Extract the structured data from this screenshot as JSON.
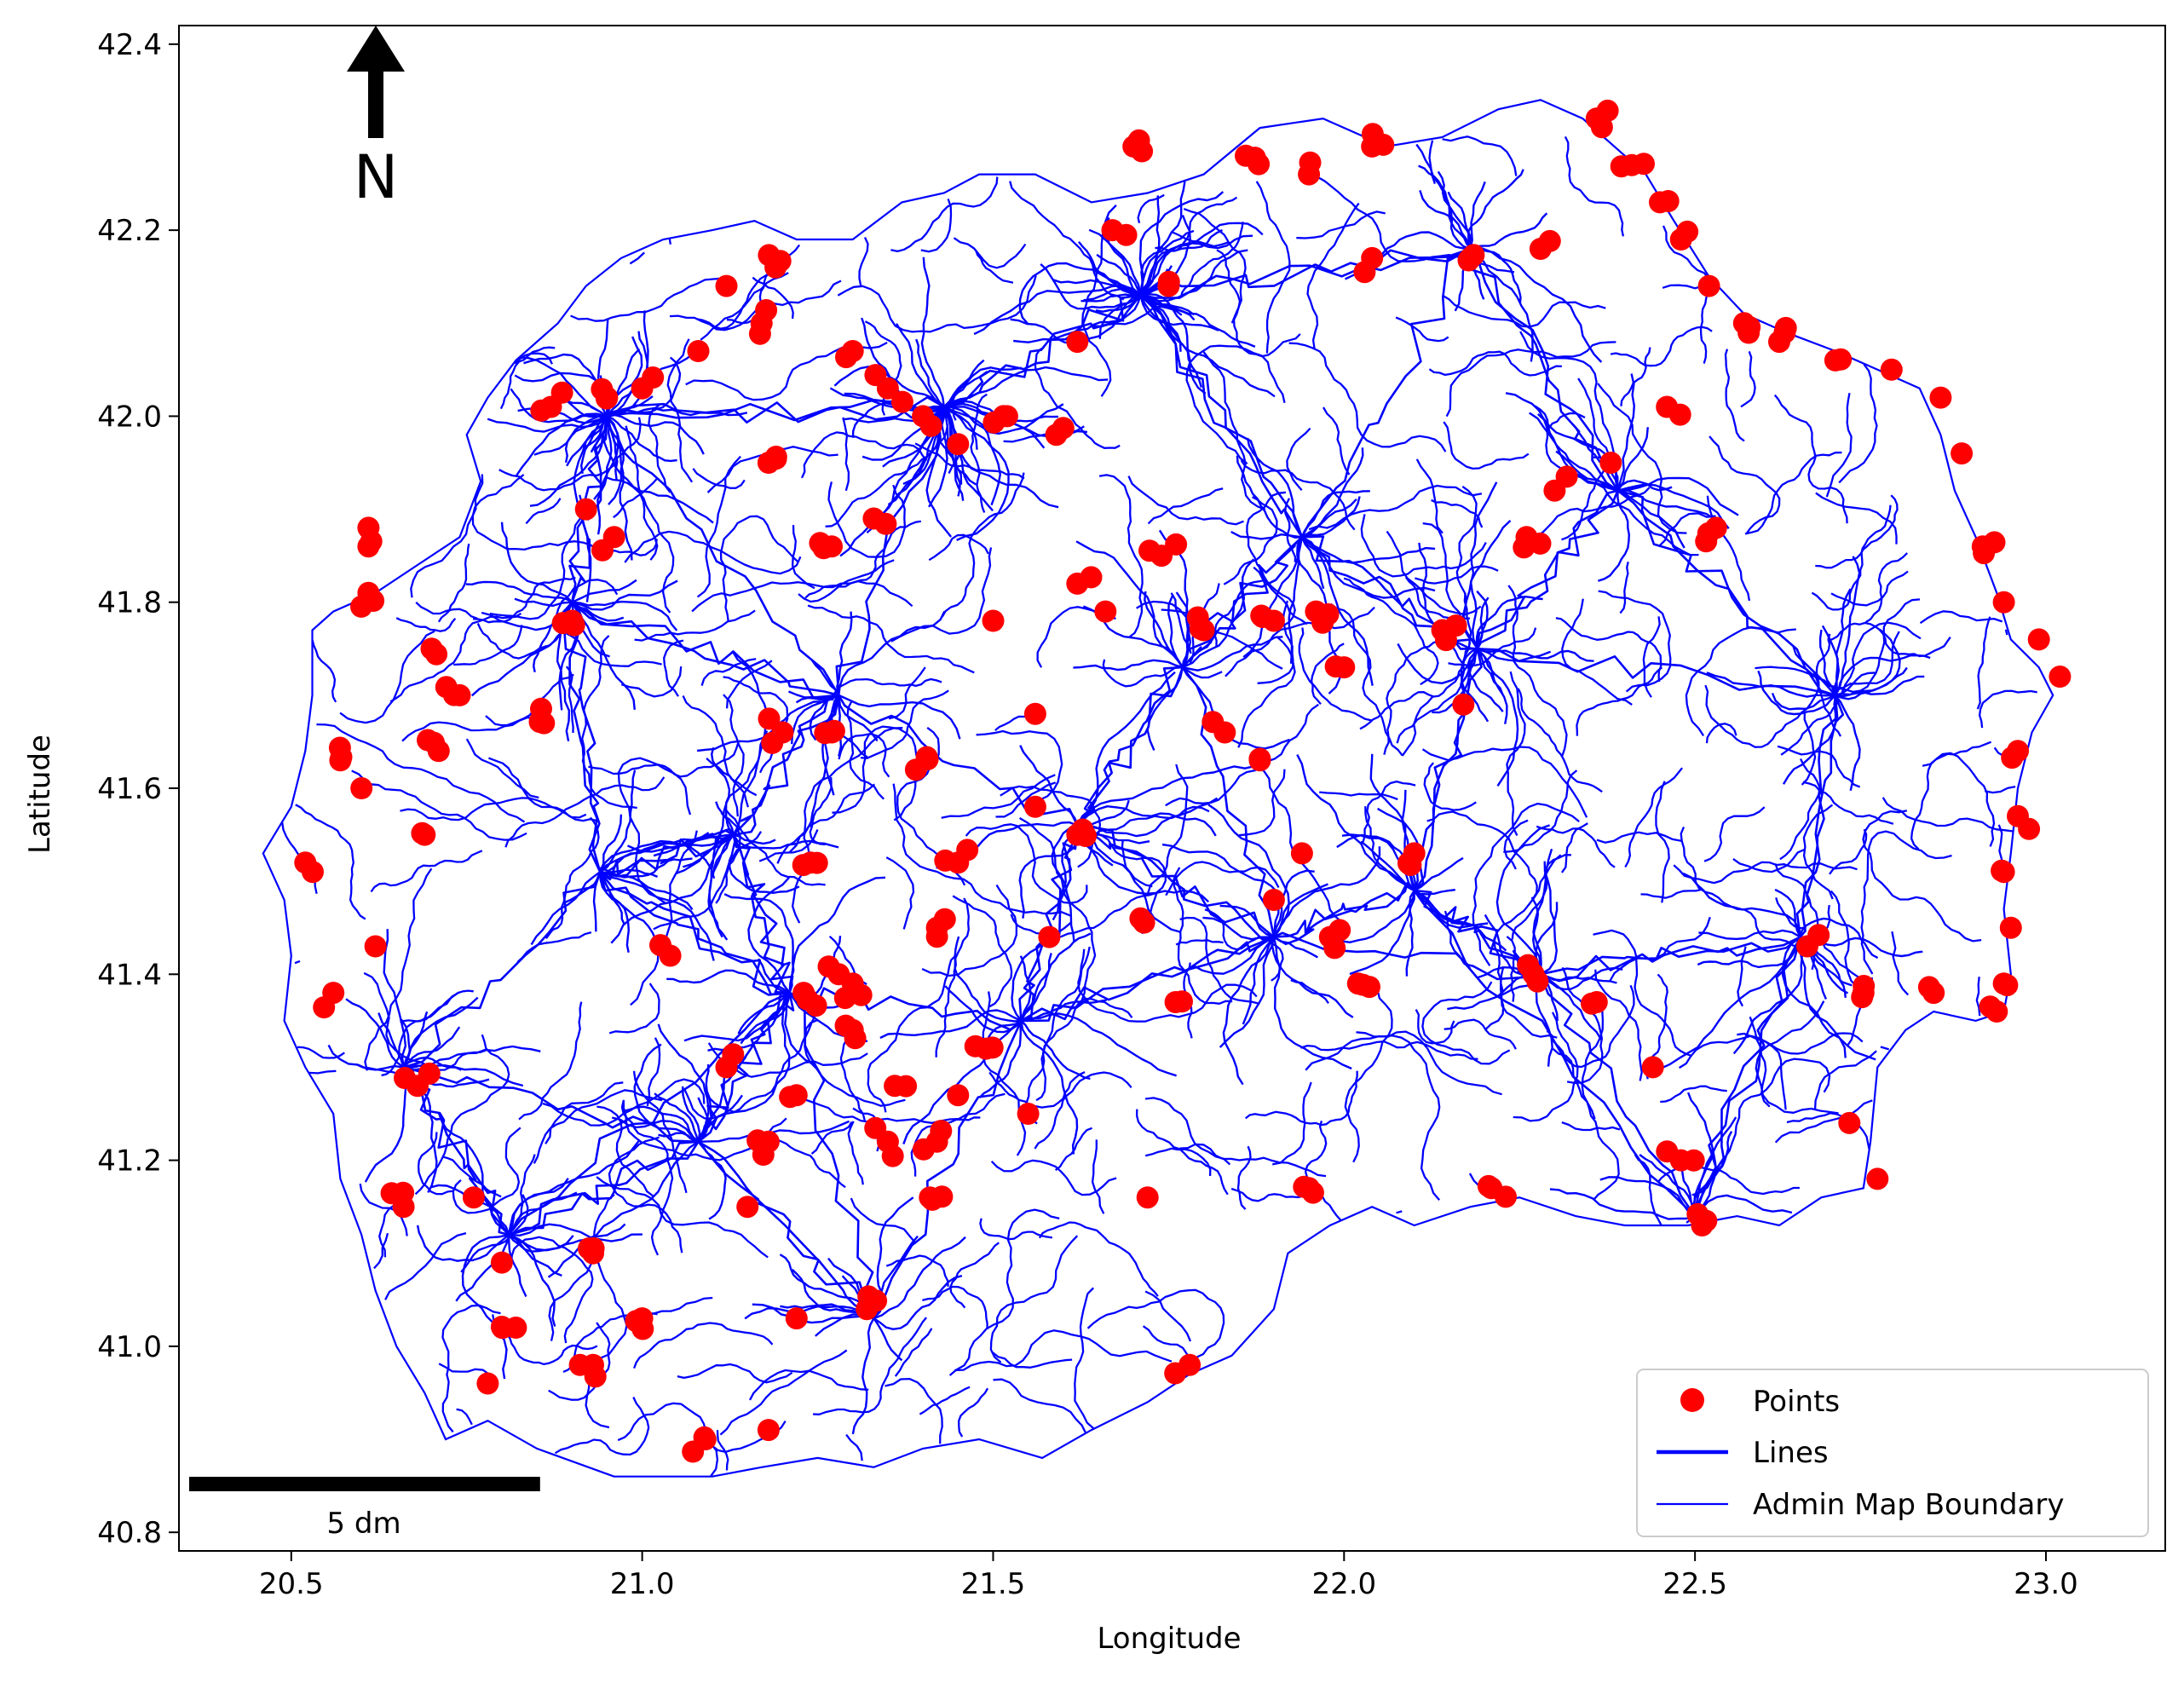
{
  "chart_data": {
    "type": "map",
    "title": "",
    "xlabel": "Longitude",
    "ylabel": "Latitude",
    "xlim": [
      20.34,
      23.17
    ],
    "ylim": [
      40.78,
      42.42
    ],
    "x_ticks": [
      "20.5",
      "21.0",
      "21.5",
      "22.0",
      "22.5",
      "23.0"
    ],
    "x_tick_values": [
      20.5,
      21.0,
      21.5,
      22.0,
      22.5,
      23.0
    ],
    "y_ticks": [
      "40.8",
      "41.0",
      "41.2",
      "41.4",
      "41.6",
      "41.8",
      "42.0",
      "42.2",
      "42.4"
    ],
    "y_tick_values": [
      40.8,
      41.0,
      41.2,
      41.4,
      41.6,
      41.8,
      42.0,
      42.2,
      42.4
    ],
    "grid": false,
    "legend_placement": "lower-right",
    "legend": [
      {
        "label": "Points",
        "marker": "circle",
        "color": "#ff0000"
      },
      {
        "label": "Lines",
        "marker": "thick-line",
        "color": "#0000ff"
      },
      {
        "label": "Admin Map Boundary",
        "marker": "thin-line",
        "color": "#0000ff"
      }
    ],
    "north_arrow": {
      "label": "N"
    },
    "scale_bar": {
      "label": "5 dm",
      "length_lon": 0.5
    },
    "colors": {
      "points": "#ff0000",
      "lines": "#0000ff",
      "boundary": "#0000ff"
    },
    "boundary": [
      [
        20.96,
        40.86
      ],
      [
        20.85,
        40.89
      ],
      [
        20.78,
        40.92
      ],
      [
        20.72,
        40.9
      ],
      [
        20.69,
        40.95
      ],
      [
        20.65,
        41.0
      ],
      [
        20.62,
        41.06
      ],
      [
        20.6,
        41.12
      ],
      [
        20.57,
        41.18
      ],
      [
        20.56,
        41.25
      ],
      [
        20.52,
        41.3
      ],
      [
        20.49,
        41.35
      ],
      [
        20.5,
        41.42
      ],
      [
        20.49,
        41.48
      ],
      [
        20.46,
        41.53
      ],
      [
        20.5,
        41.58
      ],
      [
        20.52,
        41.64
      ],
      [
        20.53,
        41.7
      ],
      [
        20.53,
        41.77
      ],
      [
        20.56,
        41.79
      ],
      [
        20.62,
        41.81
      ],
      [
        20.68,
        41.84
      ],
      [
        20.74,
        41.87
      ],
      [
        20.77,
        41.93
      ],
      [
        20.75,
        41.98
      ],
      [
        20.78,
        42.02
      ],
      [
        20.82,
        42.06
      ],
      [
        20.88,
        42.1
      ],
      [
        20.92,
        42.14
      ],
      [
        20.97,
        42.17
      ],
      [
        21.03,
        42.19
      ],
      [
        21.1,
        42.2
      ],
      [
        21.16,
        42.21
      ],
      [
        21.22,
        42.19
      ],
      [
        21.3,
        42.19
      ],
      [
        21.37,
        42.23
      ],
      [
        21.43,
        42.24
      ],
      [
        21.48,
        42.26
      ],
      [
        21.56,
        42.26
      ],
      [
        21.64,
        42.23
      ],
      [
        21.72,
        42.24
      ],
      [
        21.8,
        42.26
      ],
      [
        21.88,
        42.31
      ],
      [
        21.97,
        42.32
      ],
      [
        22.06,
        42.29
      ],
      [
        22.14,
        42.3
      ],
      [
        22.22,
        42.33
      ],
      [
        22.28,
        42.34
      ],
      [
        22.34,
        42.32
      ],
      [
        22.37,
        42.3
      ],
      [
        22.43,
        42.26
      ],
      [
        22.47,
        42.21
      ],
      [
        22.52,
        42.15
      ],
      [
        22.57,
        42.11
      ],
      [
        22.63,
        42.09
      ],
      [
        22.7,
        42.07
      ],
      [
        22.76,
        42.05
      ],
      [
        22.82,
        42.03
      ],
      [
        22.85,
        41.98
      ],
      [
        22.87,
        41.92
      ],
      [
        22.9,
        41.87
      ],
      [
        22.93,
        41.81
      ],
      [
        22.95,
        41.76
      ],
      [
        22.99,
        41.73
      ],
      [
        23.01,
        41.7
      ],
      [
        22.98,
        41.66
      ],
      [
        22.96,
        41.6
      ],
      [
        22.95,
        41.53
      ],
      [
        22.94,
        41.47
      ],
      [
        22.95,
        41.4
      ],
      [
        22.94,
        41.36
      ],
      [
        22.9,
        41.35
      ],
      [
        22.84,
        41.36
      ],
      [
        22.8,
        41.34
      ],
      [
        22.76,
        41.3
      ],
      [
        22.75,
        41.22
      ],
      [
        22.74,
        41.17
      ],
      [
        22.68,
        41.16
      ],
      [
        22.62,
        41.13
      ],
      [
        22.56,
        41.14
      ],
      [
        22.49,
        41.13
      ],
      [
        22.4,
        41.13
      ],
      [
        22.33,
        41.14
      ],
      [
        22.25,
        41.16
      ],
      [
        22.18,
        41.15
      ],
      [
        22.1,
        41.13
      ],
      [
        22.04,
        41.15
      ],
      [
        21.98,
        41.13
      ],
      [
        21.92,
        41.1
      ],
      [
        21.9,
        41.04
      ],
      [
        21.84,
        40.99
      ],
      [
        21.78,
        40.97
      ],
      [
        21.72,
        40.94
      ],
      [
        21.64,
        40.91
      ],
      [
        21.57,
        40.88
      ],
      [
        21.48,
        40.9
      ],
      [
        21.4,
        40.89
      ],
      [
        21.33,
        40.87
      ],
      [
        21.25,
        40.88
      ],
      [
        21.17,
        40.87
      ],
      [
        21.1,
        40.86
      ],
      [
        21.02,
        40.86
      ],
      [
        20.96,
        40.86
      ]
    ],
    "hubs": [
      [
        21.43,
        42.01
      ],
      [
        21.71,
        42.13
      ],
      [
        20.95,
        42.0
      ],
      [
        20.9,
        41.8
      ],
      [
        21.77,
        41.73
      ],
      [
        22.19,
        41.75
      ],
      [
        22.39,
        41.92
      ],
      [
        21.94,
        41.87
      ],
      [
        22.1,
        41.49
      ],
      [
        21.54,
        41.35
      ],
      [
        21.33,
        41.03
      ],
      [
        20.81,
        41.12
      ],
      [
        22.65,
        41.44
      ],
      [
        20.94,
        41.51
      ],
      [
        22.5,
        41.14
      ],
      [
        21.9,
        41.44
      ],
      [
        21.21,
        41.38
      ],
      [
        22.28,
        41.4
      ],
      [
        22.18,
        42.18
      ],
      [
        21.28,
        41.7
      ],
      [
        21.13,
        41.55
      ],
      [
        22.7,
        41.7
      ],
      [
        21.62,
        41.56
      ],
      [
        20.66,
        41.3
      ],
      [
        21.08,
        41.22
      ]
    ],
    "point_clusters": [
      [
        22.36,
        42.32
      ],
      [
        22.41,
        42.27
      ],
      [
        22.45,
        42.23
      ],
      [
        22.48,
        42.19
      ],
      [
        22.52,
        42.14
      ],
      [
        22.57,
        42.1
      ],
      [
        22.62,
        42.08
      ],
      [
        22.7,
        42.06
      ],
      [
        22.78,
        42.05
      ],
      [
        22.85,
        42.02
      ],
      [
        22.88,
        41.96
      ],
      [
        22.91,
        41.86
      ],
      [
        22.94,
        41.8
      ],
      [
        22.99,
        41.76
      ],
      [
        23.02,
        41.72
      ],
      [
        22.96,
        41.64
      ],
      [
        22.96,
        41.57
      ],
      [
        22.94,
        41.51
      ],
      [
        22.95,
        41.45
      ],
      [
        22.94,
        41.39
      ],
      [
        22.93,
        41.36
      ],
      [
        22.84,
        41.38
      ],
      [
        22.74,
        41.38
      ],
      [
        22.66,
        41.43
      ],
      [
        22.72,
        41.24
      ],
      [
        22.76,
        41.18
      ],
      [
        22.51,
        41.13
      ],
      [
        22.48,
        41.2
      ],
      [
        22.44,
        41.3
      ],
      [
        22.36,
        41.37
      ],
      [
        22.27,
        41.4
      ],
      [
        22.21,
        41.17
      ],
      [
        21.95,
        41.17
      ],
      [
        21.78,
        40.98
      ],
      [
        21.72,
        41.16
      ],
      [
        21.32,
        41.04
      ],
      [
        21.22,
        41.03
      ],
      [
        21.18,
        40.91
      ],
      [
        21.09,
        40.9
      ],
      [
        20.93,
        40.98
      ],
      [
        20.82,
        41.02
      ],
      [
        20.78,
        40.96
      ],
      [
        20.8,
        41.09
      ],
      [
        20.76,
        41.16
      ],
      [
        20.66,
        41.15
      ],
      [
        20.68,
        41.28
      ],
      [
        20.62,
        41.43
      ],
      [
        20.56,
        41.38
      ],
      [
        20.52,
        41.52
      ],
      [
        20.6,
        41.6
      ],
      [
        20.57,
        41.63
      ],
      [
        20.69,
        41.55
      ],
      [
        20.71,
        41.64
      ],
      [
        20.74,
        41.7
      ],
      [
        20.7,
        41.75
      ],
      [
        20.61,
        41.81
      ],
      [
        20.61,
        41.86
      ],
      [
        20.61,
        41.88
      ],
      [
        20.86,
        41.67
      ],
      [
        20.9,
        41.78
      ],
      [
        20.92,
        41.9
      ],
      [
        20.96,
        41.87
      ],
      [
        20.95,
        42.02
      ],
      [
        20.87,
        42.01
      ],
      [
        21.0,
        42.03
      ],
      [
        21.08,
        42.07
      ],
      [
        21.12,
        42.14
      ],
      [
        21.19,
        42.16
      ],
      [
        21.17,
        42.1
      ],
      [
        21.3,
        42.07
      ],
      [
        21.35,
        42.03
      ],
      [
        21.4,
        42.0
      ],
      [
        21.45,
        41.97
      ],
      [
        21.52,
        42.0
      ],
      [
        21.59,
        41.98
      ],
      [
        21.62,
        42.08
      ],
      [
        21.67,
        42.2
      ],
      [
        21.7,
        42.29
      ],
      [
        21.75,
        42.14
      ],
      [
        21.86,
        42.28
      ],
      [
        21.95,
        42.26
      ],
      [
        22.04,
        42.29
      ],
      [
        22.04,
        42.17
      ],
      [
        22.18,
        42.17
      ],
      [
        22.28,
        42.18
      ],
      [
        21.62,
        41.82
      ],
      [
        21.66,
        41.79
      ],
      [
        21.74,
        41.85
      ],
      [
        21.8,
        41.77
      ],
      [
        21.9,
        41.78
      ],
      [
        21.96,
        41.79
      ],
      [
        22.0,
        41.73
      ],
      [
        22.14,
        41.77
      ],
      [
        22.17,
        41.69
      ],
      [
        22.26,
        41.87
      ],
      [
        22.3,
        41.92
      ],
      [
        22.38,
        41.95
      ],
      [
        22.53,
        41.88
      ],
      [
        22.46,
        42.01
      ],
      [
        22.1,
        41.53
      ],
      [
        21.94,
        41.53
      ],
      [
        21.98,
        41.44
      ],
      [
        22.02,
        41.39
      ],
      [
        21.9,
        41.48
      ],
      [
        21.76,
        41.37
      ],
      [
        21.71,
        41.46
      ],
      [
        21.58,
        41.44
      ],
      [
        21.62,
        41.55
      ],
      [
        21.56,
        41.58
      ],
      [
        21.45,
        41.52
      ],
      [
        21.42,
        41.45
      ],
      [
        21.39,
        41.62
      ],
      [
        21.27,
        41.66
      ],
      [
        21.2,
        41.66
      ],
      [
        21.24,
        41.52
      ],
      [
        21.28,
        41.4
      ],
      [
        21.23,
        41.38
      ],
      [
        21.3,
        41.34
      ],
      [
        21.36,
        41.28
      ],
      [
        21.18,
        41.22
      ],
      [
        21.22,
        41.27
      ],
      [
        21.35,
        41.22
      ],
      [
        21.41,
        41.16
      ],
      [
        21.42,
        41.22
      ],
      [
        21.45,
        41.27
      ],
      [
        21.49,
        41.32
      ],
      [
        21.55,
        41.25
      ],
      [
        21.12,
        41.3
      ],
      [
        21.04,
        41.42
      ],
      [
        20.93,
        41.1
      ],
      [
        21.0,
        41.03
      ],
      [
        21.15,
        41.15
      ],
      [
        21.3,
        41.39
      ],
      [
        21.56,
        41.68
      ],
      [
        21.83,
        41.66
      ],
      [
        21.88,
        41.63
      ],
      [
        21.5,
        41.78
      ],
      [
        21.27,
        41.86
      ],
      [
        21.33,
        41.89
      ],
      [
        21.18,
        41.95
      ]
    ],
    "lines_legend_label": "Lines"
  }
}
